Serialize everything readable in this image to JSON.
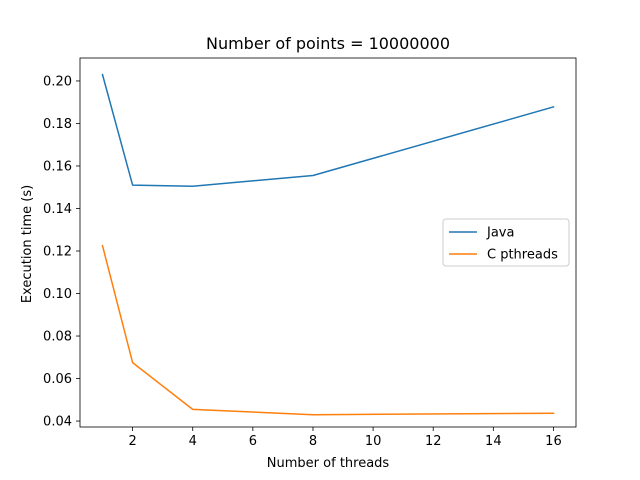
{
  "chart_data": {
    "type": "line",
    "title": "Number of points = 10000000",
    "xlabel": "Number of threads",
    "ylabel": "Execution time (s)",
    "x": [
      1,
      2,
      4,
      8,
      16
    ],
    "series": [
      {
        "name": "Java",
        "color": "#1f77b4",
        "values": [
          0.203,
          0.151,
          0.1505,
          0.1555,
          0.1878
        ]
      },
      {
        "name": "C pthreads",
        "color": "#ff7f0e",
        "values": [
          0.1225,
          0.0675,
          0.0455,
          0.043,
          0.0437
        ]
      }
    ],
    "xlim": [
      0.25,
      16.75
    ],
    "ylim": [
      0.0372,
      0.2108
    ],
    "xticks": [
      2,
      4,
      6,
      8,
      10,
      12,
      14,
      16
    ],
    "xtick_labels": [
      "2",
      "4",
      "6",
      "8",
      "10",
      "12",
      "14",
      "16"
    ],
    "yticks": [
      0.04,
      0.06,
      0.08,
      0.1,
      0.12,
      0.14,
      0.16,
      0.18,
      0.2
    ],
    "ytick_labels": [
      "0.04",
      "0.06",
      "0.08",
      "0.10",
      "0.12",
      "0.14",
      "0.16",
      "0.18",
      "0.20"
    ],
    "grid": false,
    "legend_position": "center-right"
  }
}
